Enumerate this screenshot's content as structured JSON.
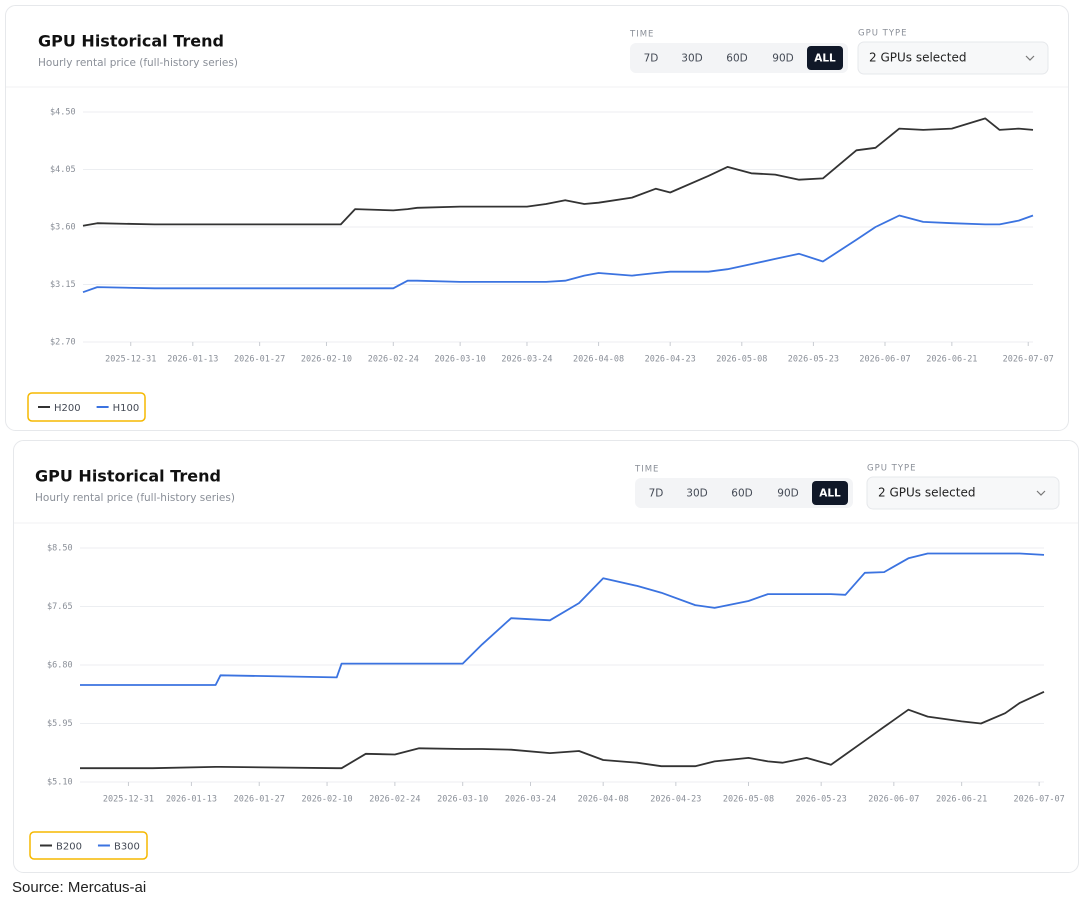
{
  "chart_data": [
    {
      "type": "line",
      "title": "GPU Historical Trend",
      "subtitle": "Hourly rental price (full-history series)",
      "controls": {
        "time_label": "TIME",
        "time_options": [
          "7D",
          "30D",
          "60D",
          "90D",
          "ALL"
        ],
        "active_time": "ALL",
        "gpu_type_label": "GPU TYPE",
        "gpu_select": "2 GPUs selected"
      },
      "x": [
        "2025-12-21",
        "2025-12-24",
        "2026-01-05",
        "2026-01-20",
        "2026-02-05",
        "2026-02-13",
        "2026-02-16",
        "2026-02-24",
        "2026-02-27",
        "2026-03-01",
        "2026-03-10",
        "2026-03-24",
        "2026-03-28",
        "2026-04-01",
        "2026-04-05",
        "2026-04-08",
        "2026-04-15",
        "2026-04-20",
        "2026-04-23",
        "2026-05-01",
        "2026-05-05",
        "2026-05-10",
        "2026-05-15",
        "2026-05-20",
        "2026-05-25",
        "2026-06-01",
        "2026-06-05",
        "2026-06-10",
        "2026-06-15",
        "2026-06-21",
        "2026-06-28",
        "2026-07-01",
        "2026-07-05",
        "2026-07-08"
      ],
      "series": [
        {
          "name": "H200",
          "color": "#333333",
          "values": [
            3.61,
            3.63,
            3.62,
            3.62,
            3.62,
            3.62,
            3.74,
            3.73,
            3.74,
            3.75,
            3.76,
            3.76,
            3.78,
            3.81,
            3.78,
            3.79,
            3.83,
            3.9,
            3.87,
            4.0,
            4.07,
            4.02,
            4.01,
            3.97,
            3.98,
            4.2,
            4.22,
            4.37,
            4.36,
            4.37,
            4.45,
            4.36,
            4.37,
            4.36
          ]
        },
        {
          "name": "H100",
          "color": "#3b73e0",
          "values": [
            3.09,
            3.13,
            3.12,
            3.12,
            3.12,
            3.12,
            3.12,
            3.12,
            3.18,
            3.18,
            3.17,
            3.17,
            3.17,
            3.18,
            3.22,
            3.24,
            3.22,
            3.24,
            3.25,
            3.25,
            3.27,
            3.31,
            3.35,
            3.39,
            3.33,
            3.5,
            3.6,
            3.69,
            3.64,
            3.63,
            3.62,
            3.62,
            3.65,
            3.69
          ]
        }
      ],
      "xlim": [
        "2025-12-21",
        "2026-07-08"
      ],
      "xticks": [
        "2025-12-31",
        "2026-01-13",
        "2026-01-27",
        "2026-02-10",
        "2026-02-24",
        "2026-03-10",
        "2026-03-24",
        "2026-04-08",
        "2026-04-23",
        "2026-05-08",
        "2026-05-23",
        "2026-06-07",
        "2026-06-21",
        "2026-07-07"
      ],
      "ylim": [
        2.7,
        4.5
      ],
      "yticks": [
        {
          "value": 2.7,
          "label": "$2.70"
        },
        {
          "value": 3.15,
          "label": "$3.15"
        },
        {
          "value": 3.6,
          "label": "$3.60"
        },
        {
          "value": 4.05,
          "label": "$4.05"
        },
        {
          "value": 4.5,
          "label": "$4.50"
        }
      ],
      "grid": true,
      "legend": "bottom-left"
    },
    {
      "type": "line",
      "title": "GPU Historical Trend",
      "subtitle": "Hourly rental price (full-history series)",
      "controls": {
        "time_label": "TIME",
        "time_options": [
          "7D",
          "30D",
          "60D",
          "90D",
          "ALL"
        ],
        "active_time": "ALL",
        "gpu_type_label": "GPU TYPE",
        "gpu_select": "2 GPUs selected"
      },
      "x": [
        "2025-12-21",
        "2026-01-05",
        "2026-01-18",
        "2026-01-19",
        "2026-02-12",
        "2026-02-13",
        "2026-02-18",
        "2026-02-24",
        "2026-03-01",
        "2026-03-10",
        "2026-03-14",
        "2026-03-20",
        "2026-03-28",
        "2026-04-03",
        "2026-04-08",
        "2026-04-15",
        "2026-04-20",
        "2026-04-27",
        "2026-05-01",
        "2026-05-08",
        "2026-05-12",
        "2026-05-15",
        "2026-05-20",
        "2026-05-25",
        "2026-05-28",
        "2026-06-01",
        "2026-06-05",
        "2026-06-10",
        "2026-06-14",
        "2026-06-21",
        "2026-06-25",
        "2026-06-30",
        "2026-07-03",
        "2026-07-08"
      ],
      "series": [
        {
          "name": "B200",
          "color": "#333333",
          "values": [
            5.3,
            5.3,
            5.32,
            5.32,
            5.3,
            5.3,
            5.51,
            5.5,
            5.59,
            5.58,
            5.58,
            5.57,
            5.52,
            5.55,
            5.42,
            5.38,
            5.33,
            5.33,
            5.4,
            5.45,
            5.4,
            5.38,
            5.45,
            5.35,
            5.5,
            5.7,
            5.9,
            6.15,
            6.05,
            5.98,
            5.95,
            6.1,
            6.25,
            6.41
          ]
        },
        {
          "name": "B300",
          "color": "#3b73e0",
          "values": [
            6.51,
            6.51,
            6.51,
            6.65,
            6.62,
            6.82,
            6.82,
            6.82,
            6.82,
            6.82,
            7.1,
            7.48,
            7.45,
            7.7,
            8.06,
            7.95,
            7.85,
            7.67,
            7.63,
            7.73,
            7.83,
            7.83,
            7.83,
            7.83,
            7.82,
            8.14,
            8.15,
            8.35,
            8.42,
            8.42,
            8.42,
            8.42,
            8.42,
            8.4
          ]
        }
      ],
      "xlim": [
        "2025-12-21",
        "2026-07-08"
      ],
      "xticks": [
        "2025-12-31",
        "2026-01-13",
        "2026-01-27",
        "2026-02-10",
        "2026-02-24",
        "2026-03-10",
        "2026-03-24",
        "2026-04-08",
        "2026-04-23",
        "2026-05-08",
        "2026-05-23",
        "2026-06-07",
        "2026-06-21",
        "2026-07-07"
      ],
      "ylim": [
        5.1,
        8.5
      ],
      "yticks": [
        {
          "value": 5.1,
          "label": "$5.10"
        },
        {
          "value": 5.95,
          "label": "$5.95"
        },
        {
          "value": 6.8,
          "label": "$6.80"
        },
        {
          "value": 7.65,
          "label": "$7.65"
        },
        {
          "value": 8.5,
          "label": "$8.50"
        }
      ],
      "grid": true,
      "legend": "bottom-left"
    }
  ],
  "source": "Source: Mercatus-ai"
}
